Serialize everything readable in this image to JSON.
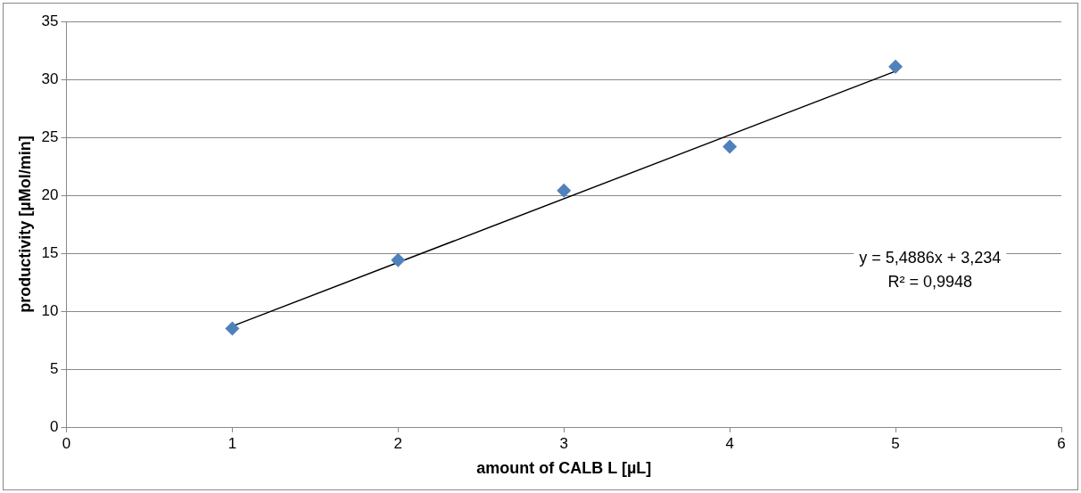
{
  "chart_data": {
    "type": "scatter",
    "xlabel": "amount of CALB L [µL]",
    "ylabel": "productivity [µMol/min]",
    "xlim": [
      0,
      6
    ],
    "xticks": [
      0,
      1,
      2,
      3,
      4,
      5,
      6
    ],
    "ylim": [
      0,
      35
    ],
    "yticks": [
      0,
      5,
      10,
      15,
      20,
      25,
      30,
      35
    ],
    "grid": "y",
    "legend": false,
    "marker": "diamond",
    "series": [
      {
        "type": "scatter",
        "color": "#4f81bd",
        "x": [
          1,
          2,
          3,
          4,
          5
        ],
        "values": [
          8.5,
          14.4,
          20.4,
          24.2,
          31.1
        ]
      },
      {
        "type": "line",
        "color": "#000000",
        "x": [
          1,
          5
        ],
        "values": [
          8.7,
          30.7
        ],
        "marker": "none"
      }
    ],
    "annotations": [
      "y = 5,4886x + 3,234",
      "R² = 0,9948"
    ]
  }
}
